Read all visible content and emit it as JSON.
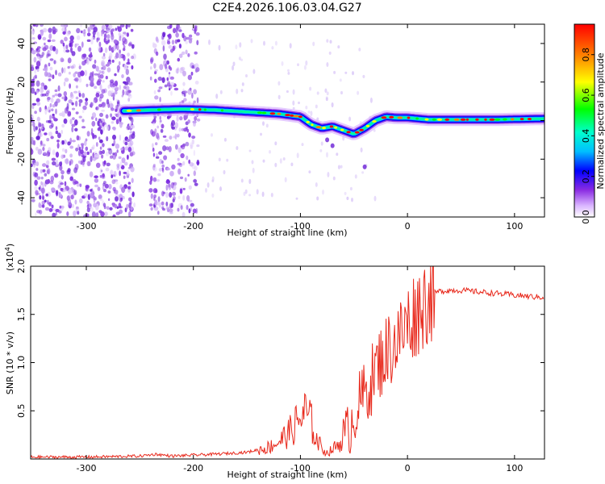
{
  "title": "C2E4.2026.106.03.04.G27",
  "chart_data": [
    {
      "type": "heatmap",
      "name": "spectrogram",
      "xlabel": "Height of straight line (km)",
      "ylabel": "Frequency (Hz)",
      "xlim": [
        -352,
        128
      ],
      "ylim": [
        -50,
        50
      ],
      "xticks": [
        -300,
        -200,
        -100,
        0,
        100
      ],
      "xtick_labels": [
        "-300",
        "-200",
        "-100",
        "0",
        "100"
      ],
      "yticks": [
        -40,
        -20,
        0,
        20,
        40
      ],
      "ytick_labels": [
        "-40",
        "-20",
        "0",
        "20",
        "40"
      ],
      "colorbar": {
        "label": "Normalized spectral amplitude",
        "range": [
          0.0,
          0.95
        ],
        "ticks": [
          0.0,
          0.2,
          0.4,
          0.6,
          0.8
        ],
        "tick_labels": [
          "0.0",
          "0.2",
          "0.4",
          "0.6",
          "0.8"
        ],
        "colormap": [
          "#ffffff",
          "#d9b3ff",
          "#8a2be2",
          "#0000ff",
          "#00bfff",
          "#00ffcc",
          "#00ff00",
          "#ffff00",
          "#ff8000",
          "#ff0000"
        ]
      },
      "ridge": {
        "x": [
          -265,
          -240,
          -210,
          -180,
          -150,
          -120,
          -100,
          -90,
          -80,
          -70,
          -60,
          -50,
          -40,
          -30,
          -20,
          -10,
          0,
          20,
          50,
          80,
          128
        ],
        "freq": [
          5,
          5.5,
          6,
          5.5,
          4.5,
          3.5,
          2,
          -2,
          -4,
          -3,
          -5,
          -7,
          -4,
          0,
          2,
          1.5,
          1.5,
          0.5,
          0.5,
          0.5,
          1
        ]
      },
      "noise_regions": [
        [
          -352,
          -255
        ],
        [
          -240,
          -195
        ]
      ]
    },
    {
      "type": "line",
      "name": "snr",
      "xlabel": "Height of straight line (km)",
      "ylabel": "SNR (10 * v/v)",
      "multiplier_label": "(x10",
      "multiplier_exponent": "4",
      "multiplier_suffix": ")",
      "xlim": [
        -352,
        128
      ],
      "ylim": [
        0,
        2.0
      ],
      "xticks": [
        -300,
        -200,
        -100,
        0,
        100
      ],
      "xtick_labels": [
        "-300",
        "-200",
        "-100",
        "0",
        "100"
      ],
      "yticks": [
        0.5,
        1.0,
        1.5,
        2.0
      ],
      "ytick_labels": [
        "0.5",
        "1.0",
        "1.5",
        "2.0"
      ],
      "color": "#e8291c",
      "series": [
        {
          "name": "SNR",
          "x": [
            -352,
            -300,
            -250,
            -235,
            -220,
            -200,
            -180,
            -150,
            -130,
            -120,
            -110,
            -100,
            -95,
            -90,
            -85,
            -80,
            -75,
            -70,
            -60,
            -55,
            -50,
            -45,
            -40,
            -35,
            -30,
            -25,
            -20,
            -15,
            -10,
            -5,
            0,
            5,
            10,
            15,
            20,
            25,
            30,
            40,
            50,
            60,
            70,
            80,
            90,
            100,
            110,
            120,
            128
          ],
          "y": [
            0.02,
            0.02,
            0.03,
            0.05,
            0.03,
            0.04,
            0.05,
            0.07,
            0.12,
            0.18,
            0.28,
            0.42,
            0.48,
            0.38,
            0.2,
            0.12,
            0.06,
            0.1,
            0.2,
            0.3,
            0.45,
            0.58,
            0.68,
            0.78,
            0.92,
            1.02,
            1.1,
            1.18,
            1.22,
            1.3,
            1.4,
            1.48,
            1.55,
            1.62,
            1.68,
            1.72,
            1.74,
            1.75,
            1.75,
            1.74,
            1.73,
            1.72,
            1.71,
            1.7,
            1.69,
            1.68,
            1.68
          ]
        }
      ]
    }
  ]
}
